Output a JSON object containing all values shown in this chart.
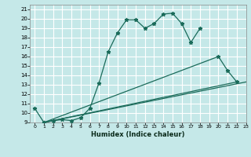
{
  "xlabel": "Humidex (Indice chaleur)",
  "bg_color": "#c5e8e8",
  "grid_color": "#ffffff",
  "line_color": "#1a6b5a",
  "xlim": [
    -0.5,
    23
  ],
  "ylim": [
    9,
    21.5
  ],
  "xticks": [
    0,
    1,
    2,
    3,
    4,
    5,
    6,
    7,
    8,
    9,
    10,
    11,
    12,
    13,
    14,
    15,
    16,
    17,
    18,
    19,
    20,
    21,
    22,
    23
  ],
  "yticks": [
    9,
    10,
    11,
    12,
    13,
    14,
    15,
    16,
    17,
    18,
    19,
    20,
    21
  ],
  "main_line": {
    "x": [
      0,
      1,
      2,
      3,
      4,
      5,
      6,
      7,
      8,
      9,
      10,
      11,
      12,
      13,
      14,
      15,
      16,
      17,
      18
    ],
    "y": [
      10.5,
      9.0,
      9.2,
      9.3,
      9.2,
      9.5,
      10.5,
      13.2,
      16.5,
      18.5,
      19.9,
      19.9,
      19.0,
      19.5,
      20.5,
      20.6,
      19.5,
      17.5,
      19.0
    ]
  },
  "line_bottom1": {
    "x": [
      1,
      22
    ],
    "y": [
      9.0,
      13.3
    ]
  },
  "line_bottom2": {
    "x": [
      1,
      23
    ],
    "y": [
      9.0,
      13.3
    ]
  },
  "line_mid": {
    "x": [
      1,
      20,
      21,
      22
    ],
    "y": [
      9.0,
      16.0,
      14.5,
      13.3
    ]
  }
}
